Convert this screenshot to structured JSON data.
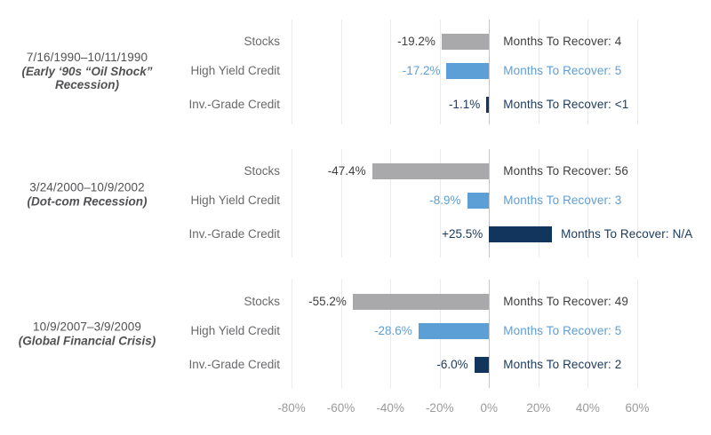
{
  "chart_data": {
    "type": "bar",
    "orientation": "horizontal",
    "title": "",
    "axis_range": [
      -80,
      60
    ],
    "tick_values": [
      -80,
      -60,
      -40,
      -20,
      0,
      20,
      40,
      60
    ],
    "tick_labels": [
      "-80%",
      "-60%",
      "-40%",
      "-20%",
      "0%",
      "20%",
      "40%",
      "60%"
    ],
    "grid": "vertical-per-section",
    "colors": {
      "stocks_bar": "#a9a9ac",
      "stocks_text": "#3f3f42",
      "high_yield_bar": "#5c9fd6",
      "high_yield_text": "#5c9fd6",
      "inv_grade_bar": "#11355d",
      "inv_grade_text": "#1b3a5e",
      "category_text": "#69696c",
      "period_text": "#515154",
      "axis_text": "#9b9b9d",
      "gridline": "#eaeaea",
      "zero_line": "#c5c5c8"
    },
    "sections": [
      {
        "period": "7/16/1990–10/11/1990",
        "name": "(Early ‘90s “Oil Shock” Recession)",
        "rows": [
          {
            "category": "Stocks",
            "series": "stocks",
            "value_pct": -19.2,
            "value_label": "-19.2%",
            "months_label": "Months To Recover: 4"
          },
          {
            "category": "High Yield Credit",
            "series": "high_yield",
            "value_pct": -17.2,
            "value_label": "-17.2%",
            "months_label": "Months To Recover: 5"
          },
          {
            "category": "Inv.-Grade Credit",
            "series": "inv_grade",
            "value_pct": -1.1,
            "value_label": "-1.1%",
            "months_label": "Months To Recover: <1"
          }
        ]
      },
      {
        "period": "3/24/2000–10/9/2002",
        "name": "(Dot-com Recession)",
        "rows": [
          {
            "category": "Stocks",
            "series": "stocks",
            "value_pct": -47.4,
            "value_label": "-47.4%",
            "months_label": "Months To Recover: 56"
          },
          {
            "category": "High Yield Credit",
            "series": "high_yield",
            "value_pct": -8.9,
            "value_label": "-8.9%",
            "months_label": "Months To Recover: 3"
          },
          {
            "category": "Inv.-Grade Credit",
            "series": "inv_grade",
            "value_pct": 25.5,
            "value_label": "+25.5%",
            "months_label": "Months To Recover: N/A"
          }
        ]
      },
      {
        "period": "10/9/2007–3/9/2009",
        "name": "(Global Financial Crisis)",
        "rows": [
          {
            "category": "Stocks",
            "series": "stocks",
            "value_pct": -55.2,
            "value_label": "-55.2%",
            "months_label": "Months To Recover: 49"
          },
          {
            "category": "High Yield Credit",
            "series": "high_yield",
            "value_pct": -28.6,
            "value_label": "-28.6%",
            "months_label": "Months To Recover: 5"
          },
          {
            "category": "Inv.-Grade Credit",
            "series": "inv_grade",
            "value_pct": -6.0,
            "value_label": "-6.0%",
            "months_label": "Months To Recover: 2"
          }
        ]
      }
    ]
  }
}
